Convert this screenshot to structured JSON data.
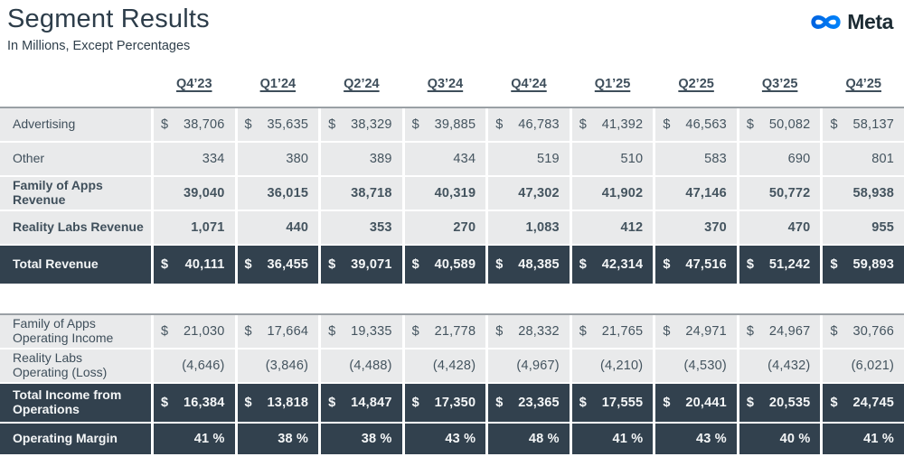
{
  "page": {
    "title": "Segment Results",
    "subtitle": "In Millions, Except Percentages"
  },
  "logo": {
    "brand": "Meta"
  },
  "colors": {
    "dark_row_bg": "#32414e",
    "light_row_bg": "#e9eaeb",
    "dark_text": "#3e4e5b",
    "light_text": "#f4f6f7",
    "logo_blue_start": "#0064e0",
    "logo_blue_end": "#0082fb",
    "table_top_border": "#9aa0a5",
    "logo_text": "#1c2b33"
  },
  "currency_symbol": "$",
  "header": {
    "quarters": [
      "Q4’23",
      "Q1’24",
      "Q2’24",
      "Q3’24",
      "Q4’24",
      "Q1’25",
      "Q2’25",
      "Q3’25",
      "Q4’25"
    ]
  },
  "tables": [
    {
      "rows": [
        {
          "label": "Advertising",
          "style": "item",
          "bold": false,
          "dollar": true,
          "values": [
            "38,706",
            "35,635",
            "38,329",
            "39,885",
            "46,783",
            "41,392",
            "46,563",
            "50,082",
            "58,137"
          ]
        },
        {
          "label": "Other",
          "style": "item",
          "bold": false,
          "dollar": false,
          "values": [
            "334",
            "380",
            "389",
            "434",
            "519",
            "510",
            "583",
            "690",
            "801"
          ]
        },
        {
          "label": "Family of Apps\nRevenue",
          "style": "item",
          "bold": true,
          "dollar": false,
          "values": [
            "39,040",
            "36,015",
            "38,718",
            "40,319",
            "47,302",
            "41,902",
            "47,146",
            "50,772",
            "58,938"
          ]
        },
        {
          "label": "Reality Labs Revenue",
          "style": "item",
          "bold": true,
          "dollar": false,
          "values": [
            "1,071",
            "440",
            "353",
            "270",
            "1,083",
            "412",
            "370",
            "470",
            "955"
          ]
        },
        {
          "label": "Total Revenue",
          "style": "total",
          "bold": true,
          "dollar": true,
          "values": [
            "40,111",
            "36,455",
            "39,071",
            "40,589",
            "48,385",
            "42,314",
            "47,516",
            "51,242",
            "59,893"
          ]
        }
      ]
    },
    {
      "rows": [
        {
          "label": "Family of Apps\nOperating Income",
          "style": "item",
          "bold": false,
          "dollar": true,
          "values": [
            "21,030",
            "17,664",
            "19,335",
            "21,778",
            "28,332",
            "21,765",
            "24,971",
            "24,967",
            "30,766"
          ]
        },
        {
          "label": "Reality Labs\nOperating (Loss)",
          "style": "item",
          "bold": false,
          "dollar": false,
          "values": [
            "(4,646)",
            "(3,846)",
            "(4,488)",
            "(4,428)",
            "(4,967)",
            "(4,210)",
            "(4,530)",
            "(4,432)",
            "(6,021)"
          ]
        },
        {
          "label": "Total Income from\nOperations",
          "style": "total",
          "bold": true,
          "dollar": true,
          "values": [
            "16,384",
            "13,818",
            "14,847",
            "17,350",
            "23,365",
            "17,555",
            "20,441",
            "20,535",
            "24,745"
          ]
        },
        {
          "label": "Operating Margin",
          "style": "margin",
          "bold": true,
          "dollar": false,
          "values": [
            "41 %",
            "38 %",
            "38 %",
            "43 %",
            "48 %",
            "41 %",
            "43 %",
            "40 %",
            "41 %"
          ]
        }
      ]
    }
  ],
  "chart_data": {
    "type": "table",
    "title": "Segment Results",
    "subtitle": "In Millions, Except Percentages",
    "categories": [
      "Q4'23",
      "Q1'24",
      "Q2'24",
      "Q3'24",
      "Q4'24",
      "Q1'25",
      "Q2'25",
      "Q3'25",
      "Q4'25"
    ],
    "series": [
      {
        "name": "Advertising",
        "values": [
          38706,
          35635,
          38329,
          39885,
          46783,
          41392,
          46563,
          50082,
          58137
        ]
      },
      {
        "name": "Other",
        "values": [
          334,
          380,
          389,
          434,
          519,
          510,
          583,
          690,
          801
        ]
      },
      {
        "name": "Family of Apps Revenue",
        "values": [
          39040,
          36015,
          38718,
          40319,
          47302,
          41902,
          47146,
          50772,
          58938
        ]
      },
      {
        "name": "Reality Labs Revenue",
        "values": [
          1071,
          440,
          353,
          270,
          1083,
          412,
          370,
          470,
          955
        ]
      },
      {
        "name": "Total Revenue",
        "values": [
          40111,
          36455,
          39071,
          40589,
          48385,
          42314,
          47516,
          51242,
          59893
        ]
      },
      {
        "name": "Family of Apps Operating Income",
        "values": [
          21030,
          17664,
          19335,
          21778,
          28332,
          21765,
          24971,
          24967,
          30766
        ]
      },
      {
        "name": "Reality Labs Operating (Loss)",
        "values": [
          -4646,
          -3846,
          -4488,
          -4428,
          -4967,
          -4210,
          -4530,
          -4432,
          -6021
        ]
      },
      {
        "name": "Total Income from Operations",
        "values": [
          16384,
          13818,
          14847,
          17350,
          23365,
          17555,
          20441,
          20535,
          24745
        ]
      },
      {
        "name": "Operating Margin (%)",
        "values": [
          41,
          38,
          38,
          43,
          48,
          41,
          43,
          40,
          41
        ]
      }
    ]
  }
}
